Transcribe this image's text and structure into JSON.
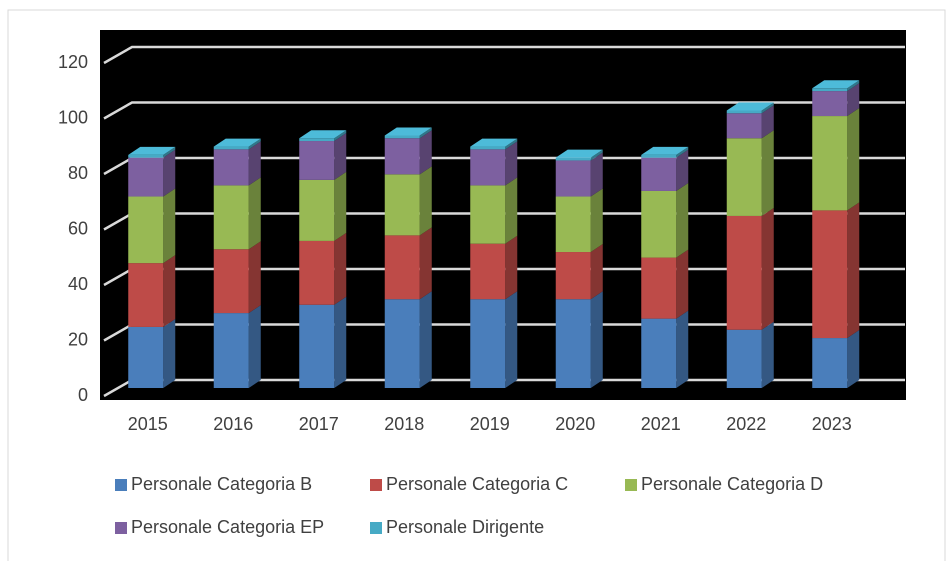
{
  "chart_data": {
    "type": "bar3d_stacked",
    "categories": [
      "2015",
      "2016",
      "2017",
      "2018",
      "2019",
      "2020",
      "2021",
      "2022",
      "2023"
    ],
    "series": [
      {
        "name": "Personale Categoria B",
        "color": "#4a7ebb",
        "values": [
          22,
          27,
          30,
          32,
          32,
          32,
          25,
          21,
          18
        ]
      },
      {
        "name": "Personale Categoria C",
        "color": "#be4b48",
        "values": [
          23,
          23,
          23,
          23,
          20,
          17,
          22,
          41,
          46
        ]
      },
      {
        "name": "Personale Categoria D",
        "color": "#98b954",
        "values": [
          24,
          23,
          22,
          22,
          21,
          20,
          24,
          28,
          34
        ]
      },
      {
        "name": "Personale Categoria EP",
        "color": "#7d60a0",
        "values": [
          14,
          13,
          14,
          13,
          13,
          13,
          12,
          9,
          9
        ]
      },
      {
        "name": "Personale Dirigente",
        "color": "#46aac5",
        "values": [
          1,
          1,
          1,
          1,
          1,
          1,
          1,
          1,
          1
        ]
      }
    ],
    "ylim": [
      0,
      120
    ],
    "yticks": [
      0,
      20,
      40,
      60,
      80,
      100,
      120
    ],
    "grid": true,
    "legend": "bottom"
  }
}
